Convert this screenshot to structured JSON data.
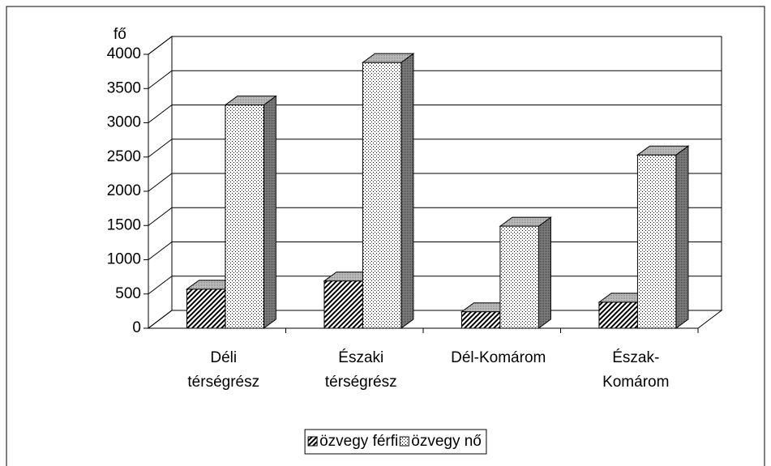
{
  "chart_data": {
    "type": "bar3d",
    "y_label": "fő",
    "categories": [
      [
        "Déli",
        "térségrész"
      ],
      [
        "Északi",
        "térségrész"
      ],
      [
        "Dél-Komárom"
      ],
      [
        "Észak-",
        "Komárom"
      ]
    ],
    "series": [
      {
        "name": "özvegy férfi",
        "color": "#000000",
        "values": [
          570,
          690,
          240,
          380
        ]
      },
      {
        "name": "özvegy nő",
        "color": "#000000",
        "values": [
          3260,
          3880,
          1490,
          2530
        ]
      }
    ],
    "ylim": [
      0,
      4000
    ],
    "yticks": [
      0,
      500,
      1000,
      1500,
      2000,
      2500,
      3000,
      3500,
      4000
    ],
    "grid": true,
    "legend": "bottom"
  }
}
